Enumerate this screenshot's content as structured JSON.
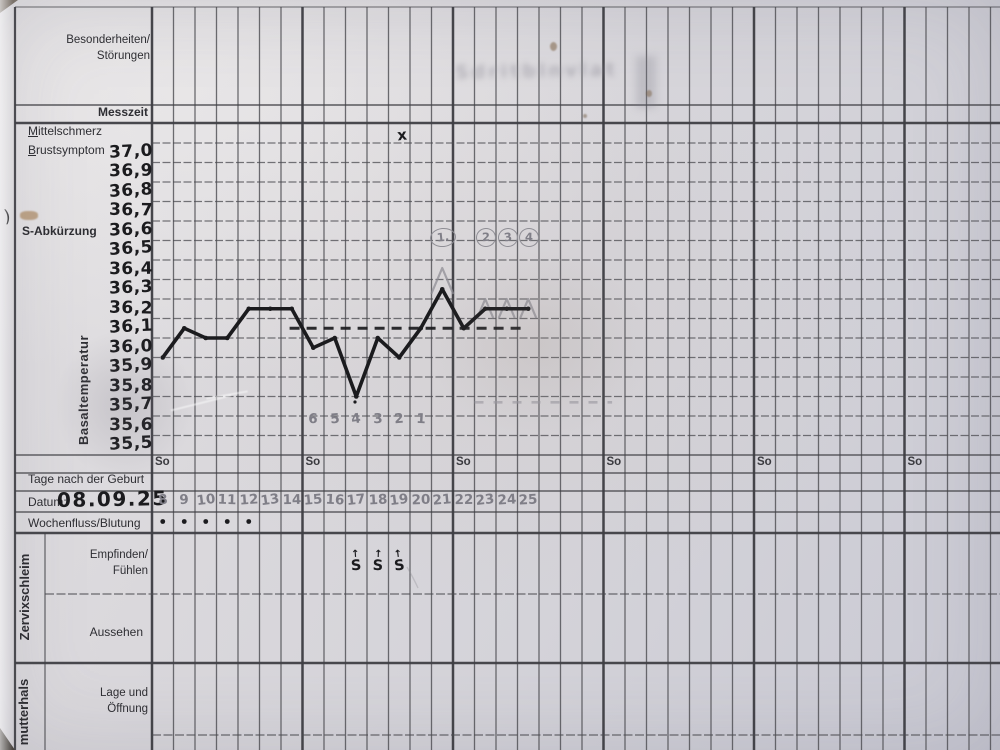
{
  "paper_form": {
    "labels": {
      "besonderheiten_line1": "Besonderheiten/",
      "besonderheiten_line2": "Störungen",
      "messzeit": "Messzeit",
      "mittelschmerz": "Mittelschmerz",
      "brustsymptom": "Brustsymptom",
      "s_abkuerzung": "S-Abkürzung",
      "basaltemperatur": "Basaltemperatur",
      "tage_nach_der_geburt": "Tage nach der Geburt",
      "datum": "Datum:",
      "wochenfluss_blutung": "Wochenfluss/Blutung",
      "zervixschleim": "Zervixschleim",
      "empfinden_line1": "Empfinden/",
      "empfinden_line2": "Fühlen",
      "aussehen": "Aussehen",
      "gebaermutterhals": "mutterhals",
      "lage_line1": "Lage und",
      "lage_line2": "Öffnung",
      "sunday": "So"
    }
  },
  "handwriting": {
    "datum_value": "08.09.25",
    "bleeding_dot_days": [
      8,
      9,
      10,
      11,
      12
    ],
    "schleim_symbol_days": [
      17,
      18,
      19
    ],
    "schleim_symbol": "S",
    "schleim_arrow": "↑",
    "mittelschmerz_mark_day": 19,
    "mittelschmerz_mark": "x",
    "margin_mark": ")"
  },
  "artifacts": {
    "showthrough_text": "Sdritblnvlat"
  },
  "colors": {
    "ink": "#1b1b1e",
    "pencil": "#8f8e95",
    "grid": "#4b4b50"
  },
  "chart_data": {
    "type": "line",
    "ylabel": "Basaltemperatur",
    "ylim": [
      35.5,
      37.0
    ],
    "y_ticks": [
      "37,0",
      "36,9",
      "36,8",
      "36,7",
      "36,6",
      "36,5",
      "36,4",
      "36,3",
      "36,2",
      "36,1",
      "36,0",
      "35,9",
      "35,8",
      "35,7",
      "35,6",
      "35,5"
    ],
    "x_days": [
      8,
      9,
      10,
      11,
      12,
      13,
      14,
      15,
      16,
      17,
      18,
      19,
      20,
      21,
      22,
      23,
      24,
      25
    ],
    "values": [
      35.95,
      36.1,
      36.05,
      36.05,
      36.2,
      36.2,
      36.2,
      36.0,
      36.05,
      35.75,
      36.05,
      35.95,
      36.1,
      36.3,
      36.1,
      36.2,
      36.2,
      36.2
    ],
    "coverline": {
      "value": 36.1,
      "from_day": 14.4,
      "to_day": 25.3,
      "style": "ink-dashed"
    },
    "pencil_dashed_line": {
      "value": 35.72,
      "from_day": 23.0,
      "to_day": 29.4
    },
    "peak_caret_days": [
      21,
      23,
      24,
      25
    ],
    "circled_numbers": [
      {
        "day": 21,
        "label": "1."
      },
      {
        "day": 23,
        "label": "2"
      },
      {
        "day": 24,
        "label": "3"
      },
      {
        "day": 25,
        "label": "4"
      }
    ],
    "countdown_numbers": {
      "days": [
        15,
        16,
        17,
        18,
        19,
        20
      ],
      "labels": [
        "6",
        "5",
        "4",
        "3",
        "2",
        "1"
      ]
    },
    "sunday_columns_days": [
      8,
      15,
      22,
      29,
      36,
      43
    ],
    "grid": true,
    "legend": false
  }
}
